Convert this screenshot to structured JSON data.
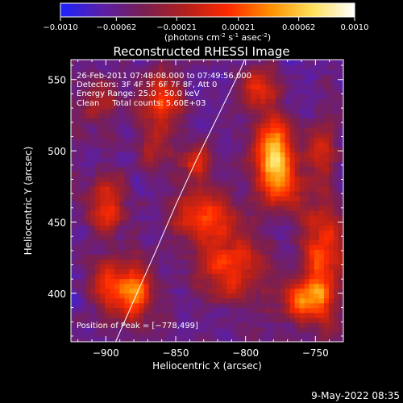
{
  "colorbar": {
    "ticks": [
      "-0.0010",
      "-0.00062",
      "-0.00021",
      "0.00021",
      "0.00062",
      "0.0010"
    ],
    "range": [
      -0.001,
      0.001
    ],
    "label_parts": [
      "(photons cm",
      "-2",
      " s",
      "-1",
      " asec",
      "-2",
      ")"
    ],
    "stops": [
      "#1c22ff",
      "#5b1fa8",
      "#7a1f52",
      "#b3201b",
      "#ff2a00",
      "#ff8f00",
      "#ffe05a",
      "#ffffff"
    ]
  },
  "chart_data": {
    "type": "heatmap",
    "title": "Reconstructed RHESSI Image",
    "xlabel": "Heliocentric X (arcsec)",
    "ylabel": "Heliocentric Y (arcsec)",
    "xlim": [
      -925,
      -730
    ],
    "ylim": [
      366,
      564
    ],
    "xticks": [
      -900,
      -850,
      -800,
      -750
    ],
    "xtick_labels": [
      "−900",
      "−850",
      "−800",
      "−750"
    ],
    "yticks": [
      400,
      450,
      500,
      550
    ],
    "ytick_labels": [
      "400",
      "450",
      "500",
      "550"
    ],
    "info_lines": [
      "26-Feb-2011 07:48:08.000 to 07:49:56.000",
      "Detectors: 3F 4F 5F 6F 7F 8F, Att 0",
      "Energy Range: 25.0 - 50.0 keV",
      "Clean     Total counts: 5.60E+03"
    ],
    "peak_label": "Position of Peak = [−778,499]",
    "peak": [
      -778,
      499
    ],
    "limb_curve": [
      [
        -893,
        366
      ],
      [
        -880,
        395
      ],
      [
        -865,
        428
      ],
      [
        -850,
        462
      ],
      [
        -835,
        494
      ],
      [
        -820,
        524
      ],
      [
        -805,
        554
      ],
      [
        -798,
        570
      ]
    ],
    "sources": [
      {
        "x": -780,
        "y": 500,
        "amp": 1.0,
        "sx": 9,
        "sy": 16
      },
      {
        "x": -775,
        "y": 475,
        "amp": 0.6,
        "sx": 12,
        "sy": 12
      },
      {
        "x": -880,
        "y": 402,
        "amp": 0.85,
        "sx": 9,
        "sy": 14
      },
      {
        "x": -830,
        "y": 455,
        "amp": 0.7,
        "sx": 14,
        "sy": 12
      },
      {
        "x": -810,
        "y": 420,
        "amp": 0.65,
        "sx": 16,
        "sy": 16
      },
      {
        "x": -900,
        "y": 460,
        "amp": 0.6,
        "sx": 9,
        "sy": 13
      },
      {
        "x": -860,
        "y": 535,
        "amp": 0.6,
        "sx": 10,
        "sy": 14
      },
      {
        "x": -835,
        "y": 492,
        "amp": 0.55,
        "sx": 7,
        "sy": 9
      },
      {
        "x": -745,
        "y": 420,
        "amp": 0.7,
        "sx": 10,
        "sy": 30
      },
      {
        "x": -760,
        "y": 395,
        "amp": 0.55,
        "sx": 12,
        "sy": 10
      },
      {
        "x": -790,
        "y": 545,
        "amp": 0.5,
        "sx": 10,
        "sy": 10
      },
      {
        "x": -745,
        "y": 500,
        "amp": 0.45,
        "sx": 8,
        "sy": 12
      },
      {
        "x": -900,
        "y": 405,
        "amp": 0.5,
        "sx": 8,
        "sy": 12
      },
      {
        "x": -865,
        "y": 500,
        "amp": 0.35,
        "sx": 8,
        "sy": 8
      },
      {
        "x": -905,
        "y": 535,
        "amp": 0.4,
        "sx": 8,
        "sy": 10
      }
    ],
    "colorscale_range": [
      -0.001,
      0.001
    ]
  },
  "footer": {
    "date": "9-May-2022 08:35"
  }
}
